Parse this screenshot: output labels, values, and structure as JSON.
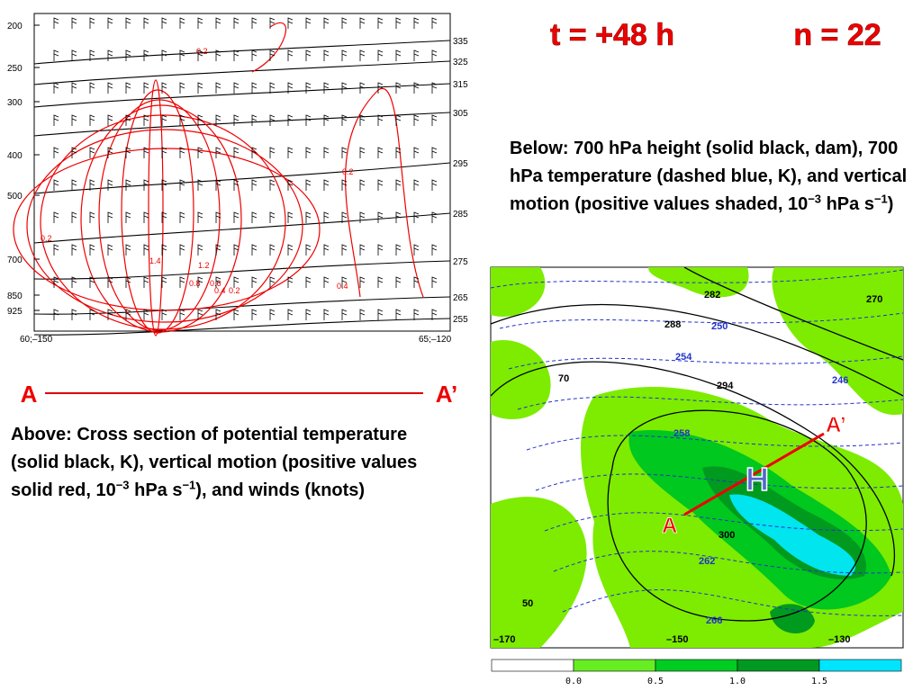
{
  "header": {
    "time": "t = +48 h",
    "members": "n = 22"
  },
  "cross_section": {
    "pressure_labels": [
      "200",
      "250",
      "300",
      "400",
      "500",
      "700",
      "850",
      "925"
    ],
    "theta_labels": [
      "335",
      "325",
      "315",
      "305",
      "295",
      "285",
      "275",
      "265",
      "255"
    ],
    "left_end": "60;–150",
    "right_end": "65;–120",
    "contour_labels": [
      "0.2",
      "0.2",
      "0.2",
      "1.4",
      "1.2",
      "0.8",
      "0.6",
      "0.4",
      "0.2",
      "0.4"
    ]
  },
  "section_line": {
    "start": "A",
    "end": "A’"
  },
  "above_caption": [
    "Above:  Cross section of potential temperature (solid black, K), vertical motion (positive values solid red, 10",
    "−3",
    " hPa s",
    "−1",
    "), and winds (knots)"
  ],
  "below_caption": [
    "Below:  700 hPa height (solid black, dam), 700 hPa temperature (dashed blue, K), and vertical motion (positive values shaded, 10",
    "−3",
    " hPa s",
    "−1",
    ")"
  ],
  "map": {
    "height_labels": [
      "282",
      "270",
      "288",
      "294",
      "300"
    ],
    "temperature_labels": [
      "250",
      "254",
      "246",
      "258",
      "262",
      "266"
    ],
    "geo_labels": [
      "70",
      "50",
      "–170",
      "–150",
      "–130"
    ],
    "section_start": "A",
    "section_end": "A’",
    "high": "H"
  },
  "colorbar": {
    "labels": [
      "0.0",
      "0.5",
      "1.0",
      "1.5"
    ]
  }
}
